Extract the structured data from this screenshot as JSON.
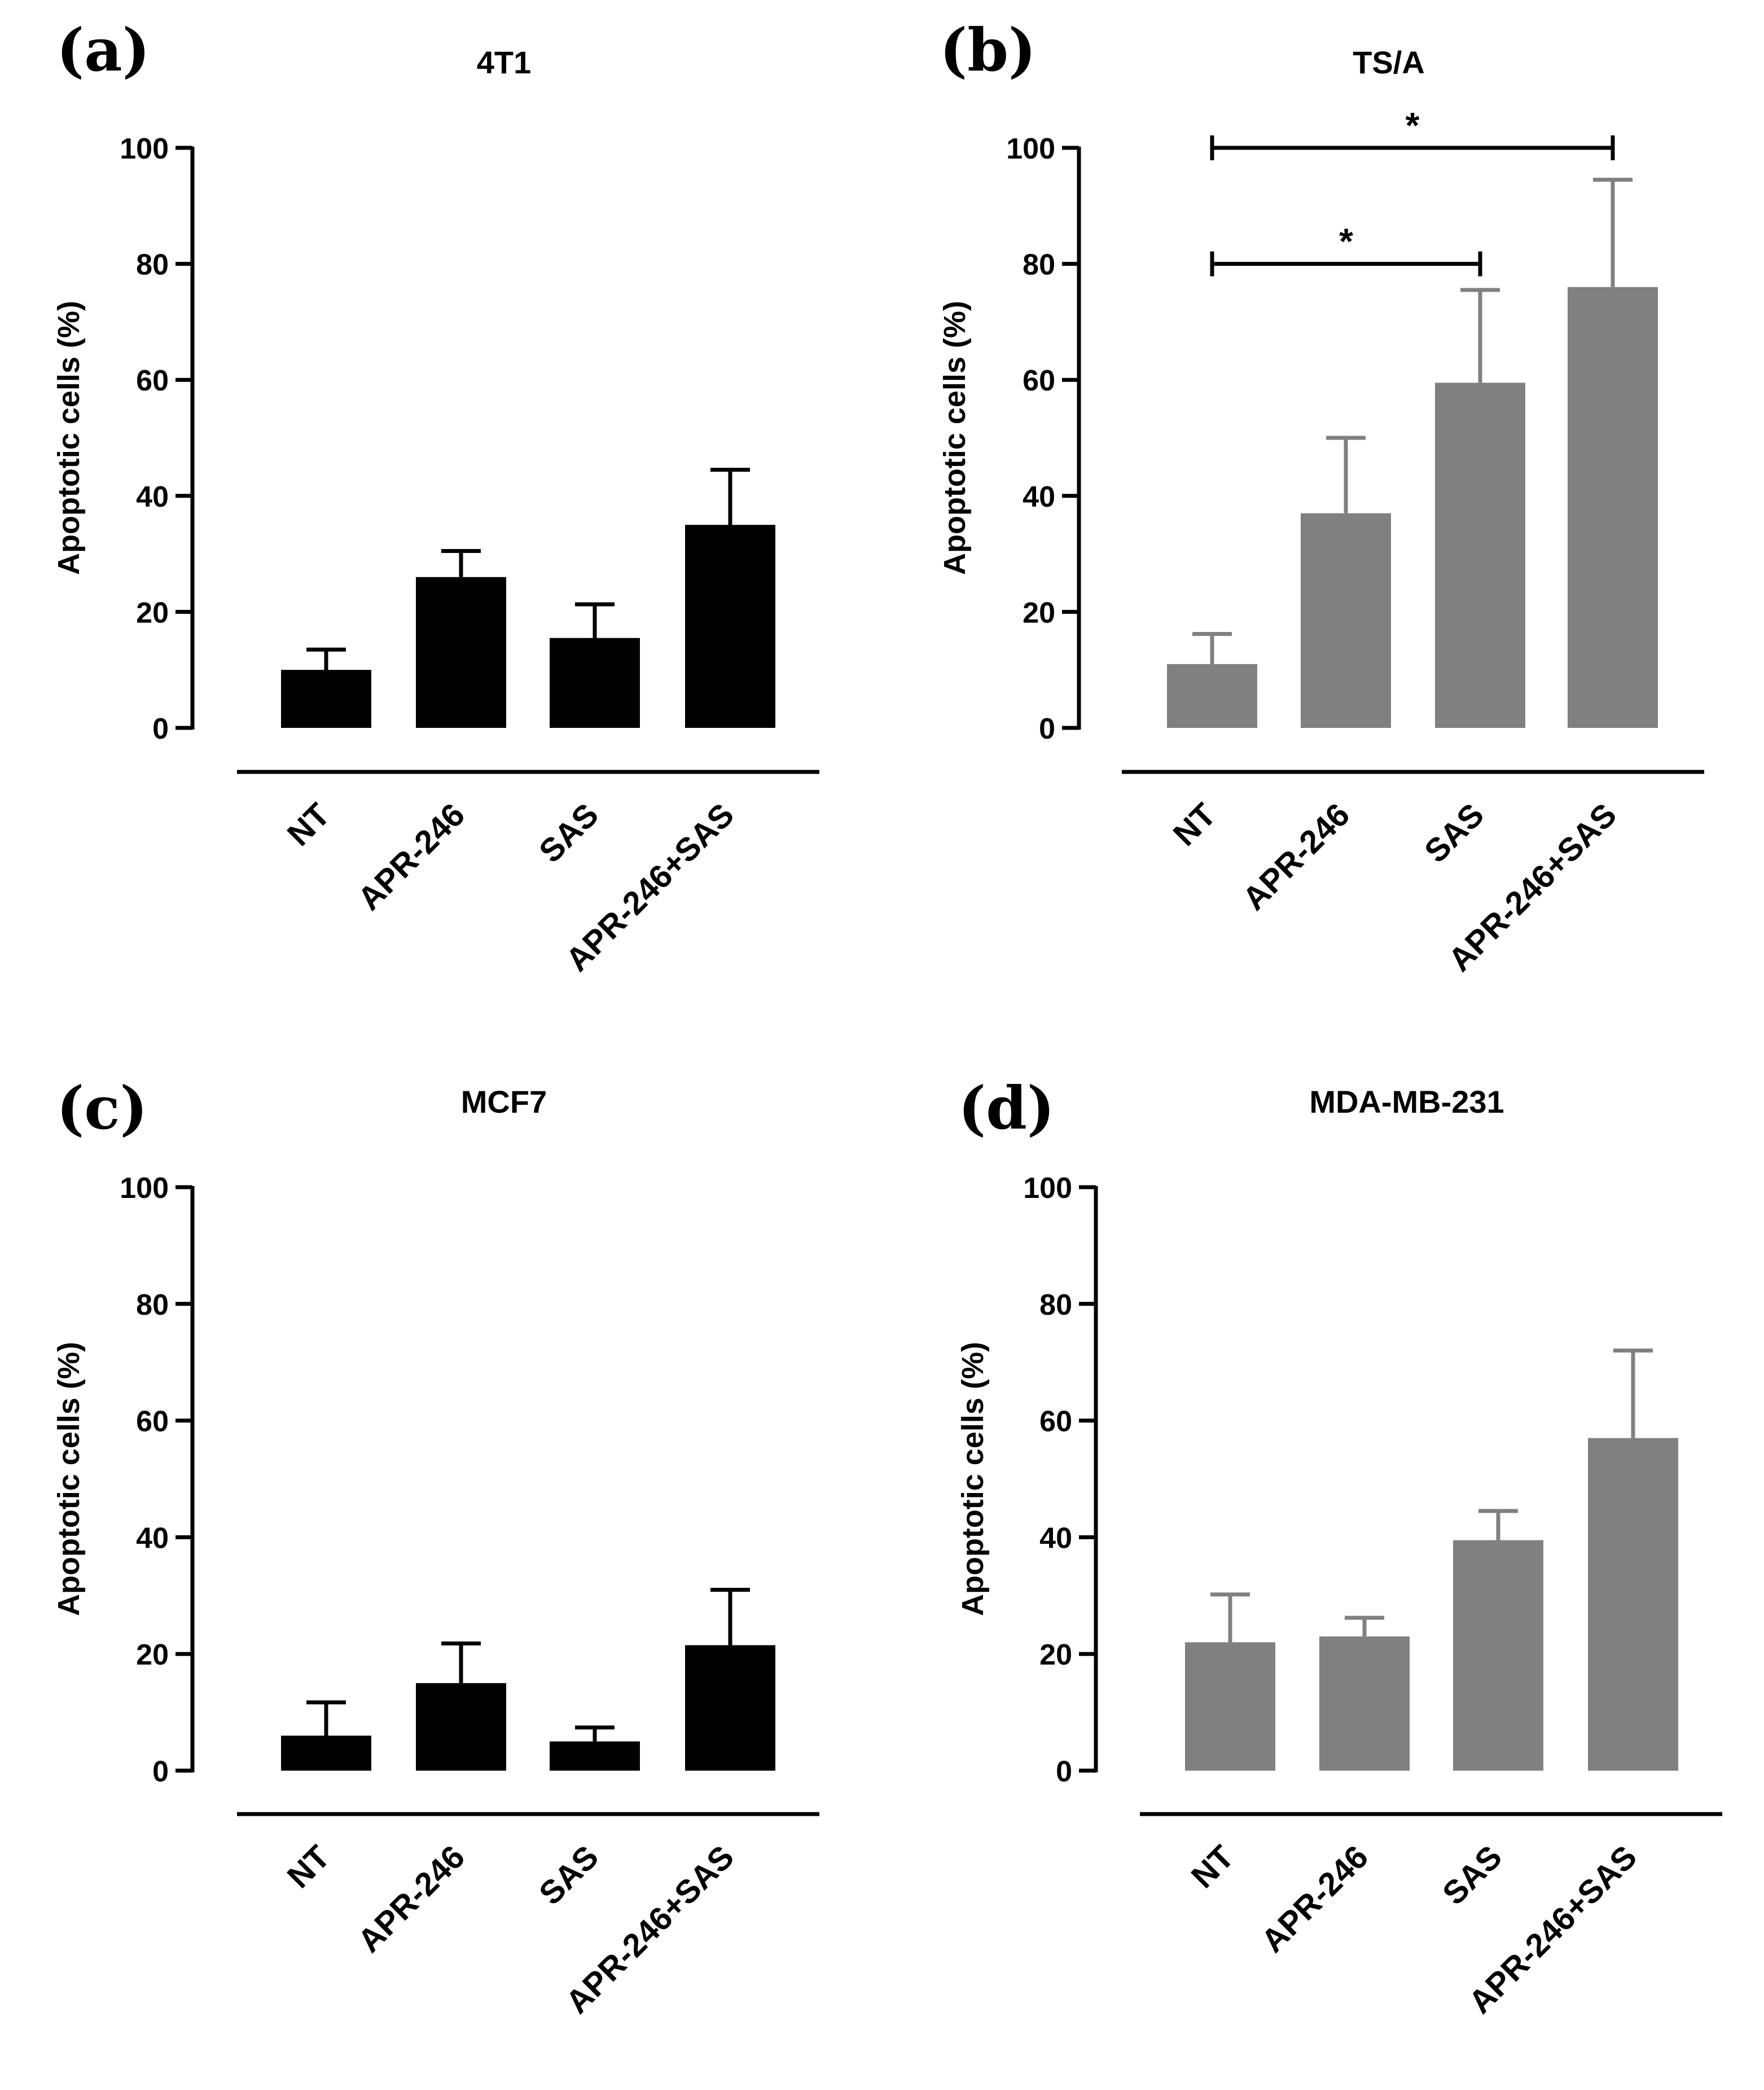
{
  "chart_data": [
    {
      "panel": "(a)",
      "type": "bar",
      "title": "4T1",
      "xlabel": "",
      "ylabel": "Apoptotic cells (%)",
      "ylim": [
        0,
        100
      ],
      "yticks": [
        0,
        20,
        40,
        60,
        80,
        100
      ],
      "categories": [
        "NT",
        "APR-246",
        "SAS",
        "APR-246+SAS"
      ],
      "values": [
        10,
        26,
        15.5,
        35
      ],
      "errors": [
        3.5,
        4.5,
        5.8,
        9.5
      ],
      "bar_color": "#000000",
      "error_color": "#000000",
      "significance": []
    },
    {
      "panel": "(b)",
      "type": "bar",
      "title": "TS/A",
      "xlabel": "",
      "ylabel": "Apoptotic cells (%)",
      "ylim": [
        0,
        100
      ],
      "yticks": [
        0,
        20,
        40,
        60,
        80,
        100
      ],
      "categories": [
        "NT",
        "APR-246",
        "SAS",
        "APR-246+SAS"
      ],
      "values": [
        11,
        37,
        59.5,
        76
      ],
      "errors": [
        5.2,
        13,
        16,
        18.5
      ],
      "bar_color": "#808080",
      "error_color": "#808080",
      "significance": [
        {
          "from": 0,
          "to": 3,
          "label": "*",
          "y": 100
        },
        {
          "from": 0,
          "to": 2,
          "label": "*",
          "y": 80
        }
      ]
    },
    {
      "panel": "(c)",
      "type": "bar",
      "title": "MCF7",
      "xlabel": "",
      "ylabel": "Apoptotic cells (%)",
      "ylim": [
        0,
        100
      ],
      "yticks": [
        0,
        20,
        40,
        60,
        80,
        100
      ],
      "categories": [
        "NT",
        "APR-246",
        "SAS",
        "APR-246+SAS"
      ],
      "values": [
        6,
        15,
        5,
        21.5
      ],
      "errors": [
        5.7,
        6.8,
        2.4,
        9.5
      ],
      "bar_color": "#000000",
      "error_color": "#000000",
      "significance": []
    },
    {
      "panel": "(d)",
      "type": "bar",
      "title": "MDA-MB-231",
      "xlabel": "",
      "ylabel": "Apoptotic cells (%)",
      "ylim": [
        0,
        100
      ],
      "yticks": [
        0,
        20,
        40,
        60,
        80,
        100
      ],
      "categories": [
        "NT",
        "APR-246",
        "SAS",
        "APR-246+SAS"
      ],
      "values": [
        22,
        23,
        39.5,
        57
      ],
      "errors": [
        8.2,
        3.2,
        5,
        15
      ],
      "bar_color": "#808080",
      "error_color": "#808080",
      "significance": []
    }
  ]
}
